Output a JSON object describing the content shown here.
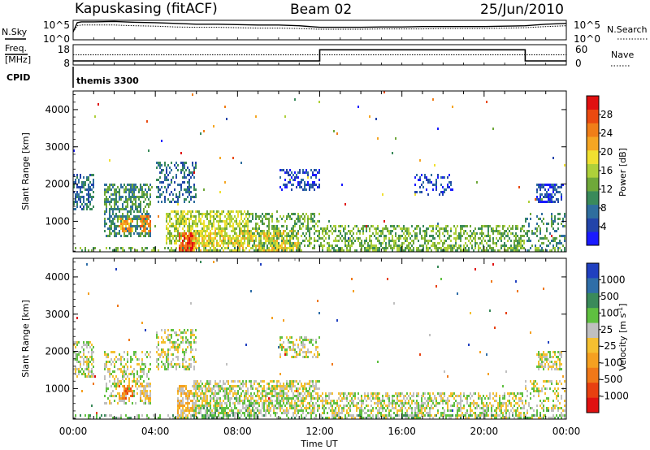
{
  "header": {
    "station": "Kapuskasing (fitACF)",
    "beam": "Beam 02",
    "date": "25/Jun/2010"
  },
  "noise_panel": {
    "left_label": "N.Sky",
    "right_label": "N.Search",
    "left_ticks": [
      "10^5",
      "10^0"
    ],
    "right_ticks": [
      "10^5",
      "10^0"
    ]
  },
  "freq_panel": {
    "left_label_line1": "Freq.",
    "left_label_line2": "[MHz]",
    "left_ticks": [
      "18",
      "8"
    ],
    "right_ticks": [
      "60",
      "0"
    ],
    "right_label": "Nave",
    "cpid_label": "CPID",
    "cpid_value": "themis 3300"
  },
  "chart_data": [
    {
      "type": "line",
      "name": "noise",
      "x_hours": [
        0,
        0.2,
        0.4,
        1,
        2,
        3,
        4,
        5,
        6,
        7,
        8,
        9,
        10,
        11,
        12,
        13,
        14,
        15,
        16,
        17,
        18,
        19,
        20,
        21,
        22,
        23,
        24
      ],
      "sky_log10": [
        2.0,
        4.4,
        4.6,
        4.6,
        4.7,
        4.5,
        4.4,
        4.2,
        4.0,
        4.0,
        3.9,
        3.8,
        3.8,
        3.6,
        3.2,
        3.2,
        3.2,
        3.3,
        3.3,
        3.4,
        3.4,
        3.4,
        3.4,
        3.5,
        3.6,
        4.0,
        4.2
      ],
      "search_log10": [
        2.0,
        3.6,
        3.8,
        3.8,
        3.8,
        3.6,
        3.5,
        3.3,
        3.2,
        3.2,
        3.1,
        3.0,
        3.0,
        2.9,
        2.7,
        2.7,
        2.7,
        2.8,
        2.8,
        2.8,
        2.9,
        2.9,
        2.9,
        3.0,
        3.1,
        3.4,
        3.6
      ],
      "ylim": [
        0,
        5
      ],
      "xlim": [
        0,
        24
      ]
    },
    {
      "type": "line",
      "name": "frequency-nave",
      "freq_x_hours": [
        0,
        12.0,
        12.0,
        22.0,
        22.0,
        24
      ],
      "freq_mhz": [
        10.0,
        10.0,
        15.5,
        15.5,
        10.0,
        10.0
      ],
      "nave": 30,
      "freq_ylim": [
        8,
        18
      ],
      "nave_ylim": [
        0,
        60
      ],
      "xlim": [
        0,
        24
      ]
    },
    {
      "type": "heatmap",
      "name": "power",
      "xlabel": "",
      "ylabel": "Slant Range [km]",
      "ylim": [
        180,
        4500
      ],
      "xlim": [
        0,
        24
      ],
      "yticks": [
        "1000",
        "2000",
        "3000",
        "4000"
      ],
      "colorbar": {
        "label": "Power [dB]",
        "ticks": [
          "4",
          "8",
          "12",
          "16",
          "20",
          "24",
          "28"
        ],
        "colors": [
          "#1a1aff",
          "#2244aa",
          "#2f6e9e",
          "#3a8a5a",
          "#6fa83a",
          "#aed03a",
          "#f0e030",
          "#f5a623",
          "#f07e18",
          "#ea4a10",
          "#e01010"
        ]
      },
      "regions": [
        {
          "t0": 0.0,
          "t1": 1.0,
          "r0": 1300,
          "r1": 2300,
          "level": 2,
          "density": 0.55
        },
        {
          "t0": 1.5,
          "t1": 3.8,
          "r0": 600,
          "r1": 2000,
          "level": 3,
          "density": 0.55
        },
        {
          "t0": 2.2,
          "t1": 2.9,
          "r0": 700,
          "r1": 1100,
          "level": 7,
          "density": 0.7
        },
        {
          "t0": 3.2,
          "t1": 3.8,
          "r0": 700,
          "r1": 1150,
          "level": 8,
          "density": 0.75
        },
        {
          "t0": 4.0,
          "t1": 6.0,
          "r0": 1500,
          "r1": 2600,
          "level": 2,
          "density": 0.4
        },
        {
          "t0": 4.5,
          "t1": 8.5,
          "r0": 400,
          "r1": 1300,
          "level": 5,
          "density": 0.6
        },
        {
          "t0": 5.1,
          "t1": 6.0,
          "r0": 200,
          "r1": 700,
          "level": 9,
          "density": 0.8
        },
        {
          "t0": 5.8,
          "t1": 11.0,
          "r0": 200,
          "r1": 800,
          "level": 6,
          "density": 0.55
        },
        {
          "t0": 8.5,
          "t1": 12.0,
          "r0": 300,
          "r1": 1200,
          "level": 4,
          "density": 0.4
        },
        {
          "t0": 10.0,
          "t1": 12.0,
          "r0": 1800,
          "r1": 2400,
          "level": 1,
          "density": 0.35
        },
        {
          "t0": 12.0,
          "t1": 22.0,
          "r0": 200,
          "r1": 900,
          "level": 4,
          "density": 0.45
        },
        {
          "t0": 16.5,
          "t1": 18.5,
          "r0": 1700,
          "r1": 2300,
          "level": 1,
          "density": 0.25
        },
        {
          "t0": 22.5,
          "t1": 23.8,
          "r0": 1500,
          "r1": 2000,
          "level": 1,
          "density": 0.6
        },
        {
          "t0": 22.0,
          "t1": 24.0,
          "r0": 200,
          "r1": 1200,
          "level": 3,
          "density": 0.3
        },
        {
          "t0": 0.0,
          "t1": 24.0,
          "r0": 180,
          "r1": 320,
          "level": 4,
          "density": 0.35
        }
      ],
      "scatter_density": 0.004
    },
    {
      "type": "heatmap",
      "name": "velocity",
      "xlabel": "Time UT",
      "ylabel": "Slant Range [km]",
      "ylim": [
        180,
        4500
      ],
      "xlim": [
        0,
        24
      ],
      "xticks": [
        "00:00",
        "04:00",
        "08:00",
        "12:00",
        "16:00",
        "20:00",
        "00:00"
      ],
      "yticks": [
        "1000",
        "2000",
        "3000",
        "4000"
      ],
      "colorbar": {
        "label": "Velocity [m s",
        "label_sup": "-1",
        "label_close": "]",
        "ticks": [
          "1000",
          "500",
          "100",
          "25",
          "-25",
          "-100",
          "-500",
          "-1000"
        ],
        "colors": [
          "#2040c0",
          "#2f6ea8",
          "#3a8a5a",
          "#5fc040",
          "#c0c0c0",
          "#f5c030",
          "#f5a020",
          "#f07818",
          "#e84010",
          "#e01010"
        ]
      },
      "regions": [
        {
          "t0": 0.0,
          "t1": 1.0,
          "r0": 1300,
          "r1": 2300,
          "level": 4,
          "density": 0.55
        },
        {
          "t0": 1.5,
          "t1": 3.8,
          "r0": 600,
          "r1": 2000,
          "level": 4,
          "density": 0.35
        },
        {
          "t0": 2.2,
          "t1": 2.9,
          "r0": 700,
          "r1": 1100,
          "level": 7,
          "density": 0.7
        },
        {
          "t0": 3.2,
          "t1": 3.8,
          "r0": 700,
          "r1": 1150,
          "level": 5,
          "density": 0.75
        },
        {
          "t0": 4.0,
          "t1": 6.0,
          "r0": 1500,
          "r1": 2600,
          "level": 4,
          "density": 0.4
        },
        {
          "t0": 5.0,
          "t1": 6.0,
          "r0": 200,
          "r1": 1100,
          "level": 5,
          "density": 0.75
        },
        {
          "t0": 5.8,
          "t1": 12.0,
          "r0": 300,
          "r1": 1200,
          "level": 4,
          "density": 0.6
        },
        {
          "t0": 6.0,
          "t1": 9.0,
          "r0": 200,
          "r1": 600,
          "level": 3,
          "density": 0.35
        },
        {
          "t0": 10.0,
          "t1": 12.0,
          "r0": 1800,
          "r1": 2400,
          "level": 4,
          "density": 0.35
        },
        {
          "t0": 12.0,
          "t1": 22.0,
          "r0": 200,
          "r1": 900,
          "level": 4,
          "density": 0.5
        },
        {
          "t0": 22.5,
          "t1": 23.8,
          "r0": 1500,
          "r1": 2000,
          "level": 4,
          "density": 0.6
        },
        {
          "t0": 22.0,
          "t1": 24.0,
          "r0": 200,
          "r1": 1200,
          "level": 4,
          "density": 0.3
        },
        {
          "t0": 0.0,
          "t1": 24.0,
          "r0": 180,
          "r1": 320,
          "level": 3,
          "density": 0.35
        }
      ],
      "scatter_density": 0.004
    }
  ]
}
